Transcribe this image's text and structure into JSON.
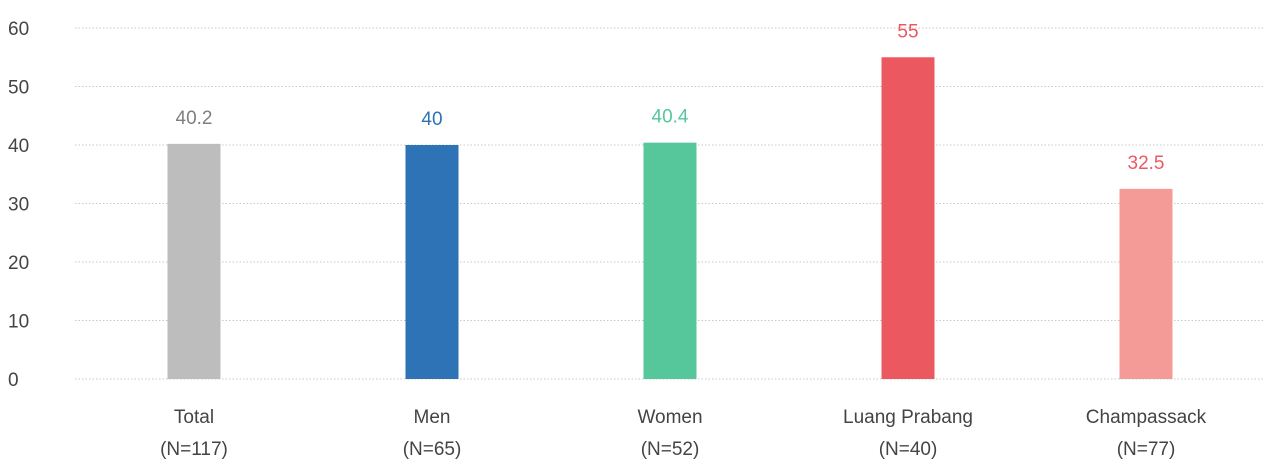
{
  "chart_data": {
    "type": "bar",
    "title": "",
    "xlabel": "",
    "ylabel": "",
    "ylim": [
      0,
      60
    ],
    "yticks": [
      0,
      10,
      20,
      30,
      40,
      50,
      60
    ],
    "grid": true,
    "categories": [
      {
        "label": "Total",
        "sublabel": "(N=117)"
      },
      {
        "label": "Men",
        "sublabel": "(N=65)"
      },
      {
        "label": "Women",
        "sublabel": "(N=52)"
      },
      {
        "label": "Luang Prabang",
        "sublabel": "(N=40)"
      },
      {
        "label": "Champassack",
        "sublabel": "(N=77)"
      }
    ],
    "values": [
      40.2,
      40,
      40.4,
      55,
      32.5
    ],
    "data_labels": [
      "40.2",
      "40",
      "40.4",
      "55",
      "32.5"
    ],
    "bar_colors": [
      "#bdbdbd",
      "#2e73b5",
      "#55c79b",
      "#ec5860",
      "#f49b97"
    ],
    "label_colors": [
      "#7f7f7f",
      "#2e73b5",
      "#55c79b",
      "#ec5860",
      "#ec5860"
    ]
  }
}
